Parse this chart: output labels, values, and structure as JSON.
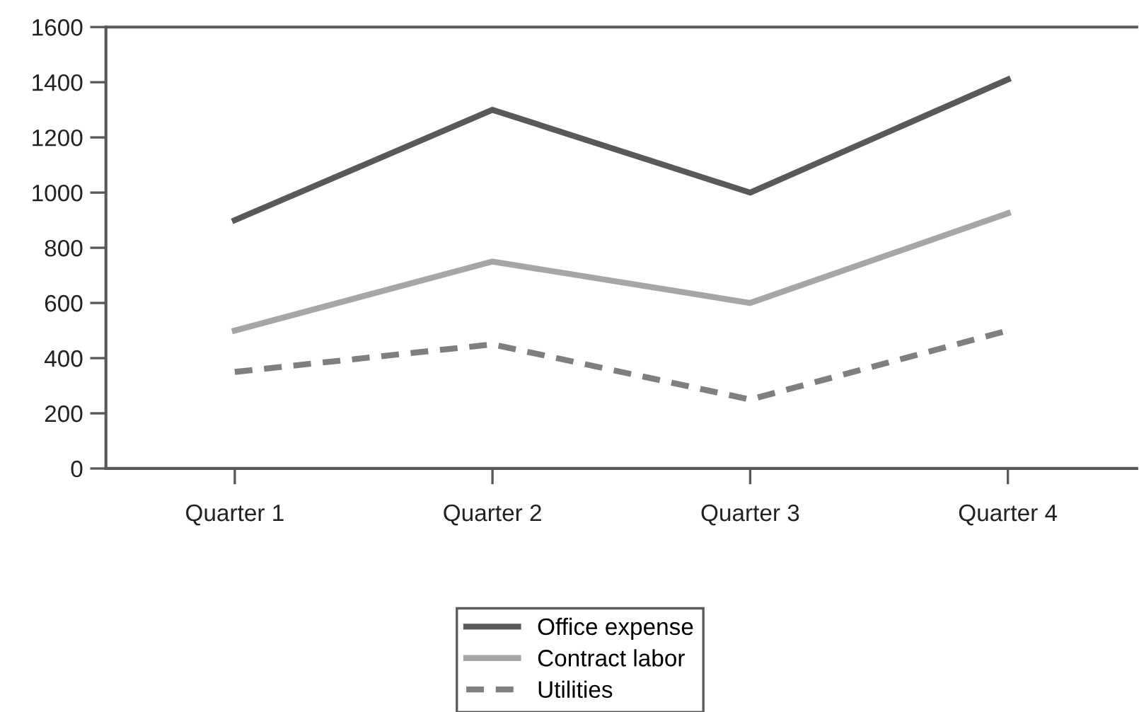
{
  "chart_data": {
    "type": "line",
    "categories": [
      "Quarter 1",
      "Quarter 2",
      "Quarter 3",
      "Quarter 4"
    ],
    "series": [
      {
        "name": "Office expense",
        "color": "#595959",
        "line_style": "solid",
        "values": [
          900,
          1300,
          1000,
          1410
        ]
      },
      {
        "name": "Contract labor",
        "color": "#a6a6a6",
        "line_style": "solid",
        "values": [
          500,
          750,
          600,
          925
        ]
      },
      {
        "name": "Utilities",
        "color": "#7f7f7f",
        "line_style": "dashed",
        "values": [
          350,
          450,
          250,
          500
        ]
      }
    ],
    "ylim": [
      0,
      1600
    ],
    "yticks": [
      0,
      200,
      400,
      600,
      800,
      1000,
      1200,
      1400,
      1600
    ],
    "grid": false,
    "legend": "bottom",
    "marker": "none"
  }
}
